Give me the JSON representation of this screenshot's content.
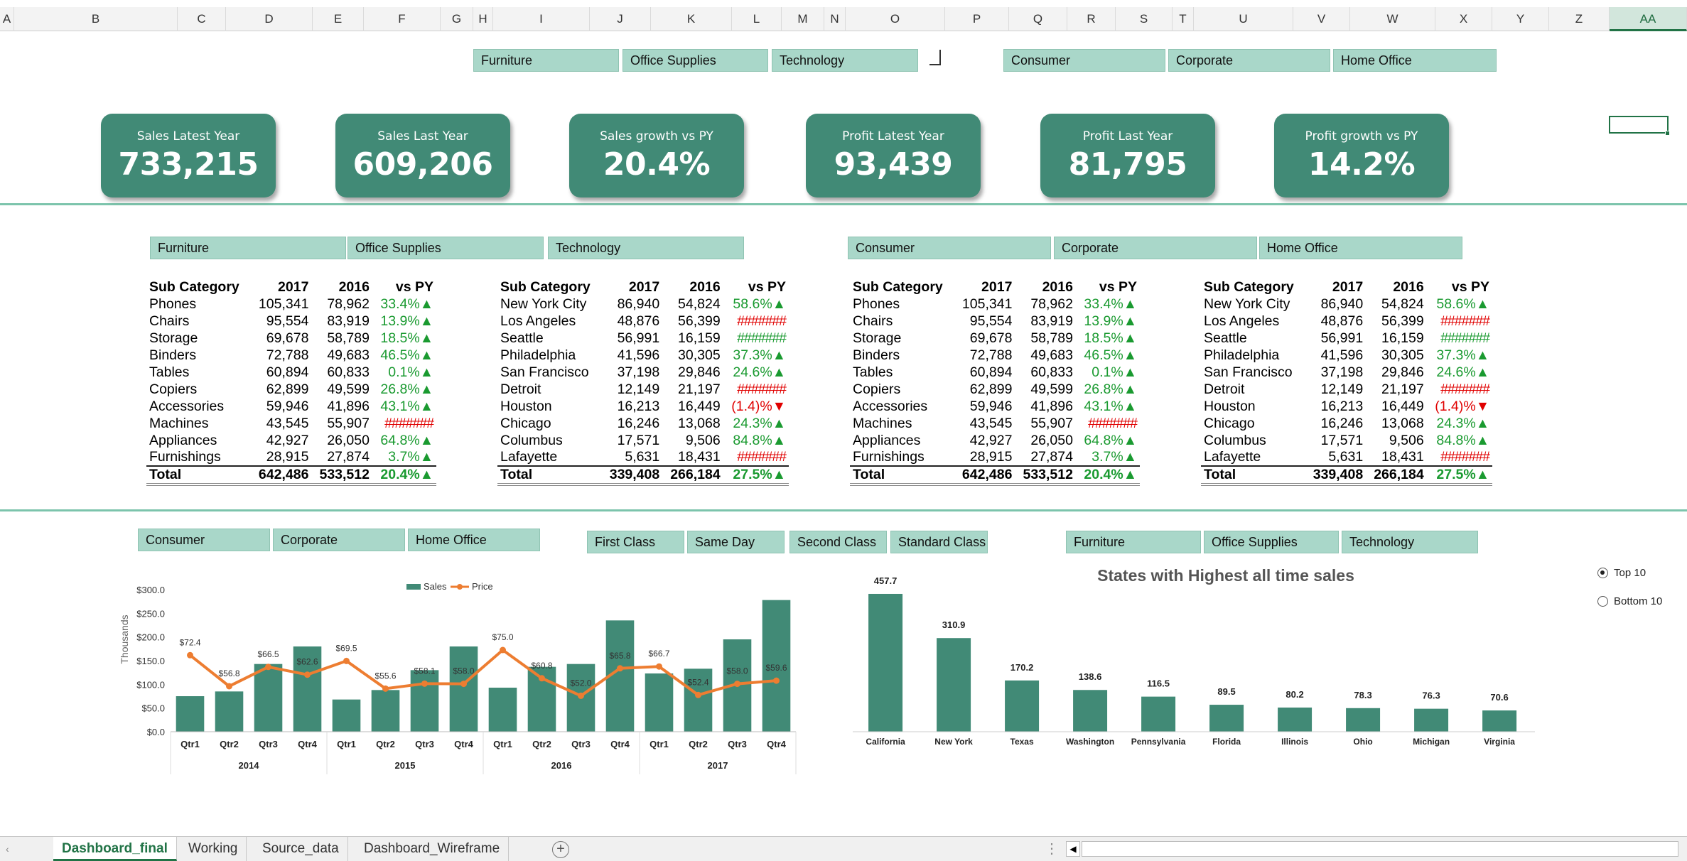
{
  "columns": [
    "A",
    "B",
    "C",
    "D",
    "E",
    "F",
    "G",
    "H",
    "I",
    "J",
    "K",
    "L",
    "M",
    "N",
    "O",
    "P",
    "Q",
    "R",
    "S",
    "T",
    "U",
    "V",
    "W",
    "X",
    "Y",
    "Z",
    "AA"
  ],
  "selected_column": "AA",
  "top_slicers": {
    "category": [
      "Furniture",
      "Office Supplies",
      "Technology"
    ],
    "segment": [
      "Consumer",
      "Corporate",
      "Home Office"
    ]
  },
  "kpis": [
    {
      "label": "Sales Latest Year",
      "value": "733,215"
    },
    {
      "label": "Sales Last Year",
      "value": "609,206"
    },
    {
      "label": "Sales growth vs PY",
      "value": "20.4%"
    },
    {
      "label": "Profit Latest Year",
      "value": "93,439"
    },
    {
      "label": "Profit Last Year",
      "value": "81,795"
    },
    {
      "label": "Profit growth vs PY",
      "value": "14.2%"
    }
  ],
  "mid_slicers": {
    "category": [
      "Furniture",
      "Office Supplies",
      "Technology"
    ],
    "segment": [
      "Consumer",
      "Corporate",
      "Home Office"
    ]
  },
  "table_subcat": {
    "headers": [
      "Sub Category",
      "2017",
      "2016",
      "vs PY"
    ],
    "rows": [
      [
        "Phones",
        "105,341",
        "78,962",
        "33.4%▲"
      ],
      [
        "Chairs",
        "95,554",
        "83,919",
        "13.9%▲"
      ],
      [
        "Storage",
        "69,678",
        "58,789",
        "18.5%▲"
      ],
      [
        "Binders",
        "72,788",
        "49,683",
        "46.5%▲"
      ],
      [
        "Tables",
        "60,894",
        "60,833",
        "0.1%▲"
      ],
      [
        "Copiers",
        "62,899",
        "49,599",
        "26.8%▲"
      ],
      [
        "Accessories",
        "59,946",
        "41,896",
        "43.1%▲"
      ],
      [
        "Machines",
        "43,545",
        "55,907",
        "#######"
      ],
      [
        "Appliances",
        "42,927",
        "26,050",
        "64.8%▲"
      ],
      [
        "Furnishings",
        "28,915",
        "27,874",
        "3.7%▲"
      ]
    ],
    "total": [
      "Total",
      "642,486",
      "533,512",
      "20.4%▲"
    ]
  },
  "table_city": {
    "headers": [
      "Sub Category",
      "2017",
      "2016",
      "vs PY"
    ],
    "rows": [
      [
        "New York City",
        "86,940",
        "54,824",
        "58.6%▲"
      ],
      [
        "Los Angeles",
        "48,876",
        "56,399",
        "#######"
      ],
      [
        "Seattle",
        "56,991",
        "16,159",
        "#######"
      ],
      [
        "Philadelphia",
        "41,596",
        "30,305",
        "37.3%▲"
      ],
      [
        "San Francisco",
        "37,198",
        "29,846",
        "24.6%▲"
      ],
      [
        "Detroit",
        "12,149",
        "21,197",
        "#######"
      ],
      [
        "Houston",
        "16,213",
        "16,449",
        "(1.4)%▼"
      ],
      [
        "Chicago",
        "16,246",
        "13,068",
        "24.3%▲"
      ],
      [
        "Columbus",
        "17,571",
        "9,506",
        "84.8%▲"
      ],
      [
        "Lafayette",
        "5,631",
        "18,431",
        "#######"
      ]
    ],
    "total": [
      "Total",
      "339,408",
      "266,184",
      "27.5%▲"
    ]
  },
  "bottom_slicers": {
    "segment": [
      "Consumer",
      "Corporate",
      "Home Office"
    ],
    "ship_mode": [
      "First Class",
      "Same Day",
      "Second Class",
      "Standard Class"
    ],
    "category": [
      "Furniture",
      "Office Supplies",
      "Technology"
    ]
  },
  "radio": {
    "top": "Top 10",
    "bottom": "Bottom 10",
    "selected": "top"
  },
  "colors": {
    "bar": "#418a76",
    "line": "#ed7d31",
    "accent": "#217346",
    "slicer": "#a9d7c9"
  },
  "chart_data": [
    {
      "type": "bar",
      "title": "",
      "ylabel": "Thousands",
      "legend": [
        "Sales",
        "Price"
      ],
      "legend_position": "top",
      "ylim": [
        0,
        300
      ],
      "yticks": [
        "$0.0",
        "$50.0",
        "$100.0",
        "$150.0",
        "$200.0",
        "$250.0",
        "$300.0"
      ],
      "years": [
        "2014",
        "2015",
        "2016",
        "2017"
      ],
      "categories": [
        "Qtr1",
        "Qtr2",
        "Qtr3",
        "Qtr4",
        "Qtr1",
        "Qtr2",
        "Qtr3",
        "Qtr4",
        "Qtr1",
        "Qtr2",
        "Qtr3",
        "Qtr4",
        "Qtr1",
        "Qtr2",
        "Qtr3",
        "Qtr4"
      ],
      "series": [
        {
          "name": "Sales",
          "type": "bar",
          "values": [
            75,
            85,
            143,
            180,
            68,
            88,
            130,
            180,
            93,
            137,
            143,
            235,
            123,
            133,
            195,
            278
          ]
        },
        {
          "name": "Price",
          "type": "line",
          "values": [
            72.4,
            56.8,
            66.5,
            62.6,
            69.5,
            55.6,
            58.1,
            58.0,
            75.0,
            60.8,
            52.0,
            65.8,
            66.7,
            52.4,
            58.0,
            59.6
          ],
          "labels": [
            "$72.4",
            "$56.8",
            "$66.5",
            "$62.6",
            "$69.5",
            "$55.6",
            "$58.1",
            "$58.0",
            "$75.0",
            "$60.8",
            "$52.0",
            "$65.8",
            "$66.7",
            "$52.4",
            "$58.0",
            "$59.6"
          ]
        }
      ]
    },
    {
      "type": "bar",
      "title": "States with Highest all time sales",
      "categories": [
        "California",
        "New York",
        "Texas",
        "Washington",
        "Pennsylvania",
        "Florida",
        "Illinois",
        "Ohio",
        "Michigan",
        "Virginia"
      ],
      "values": [
        457.7,
        310.9,
        170.2,
        138.6,
        116.5,
        89.5,
        80.2,
        78.3,
        76.3,
        70.6
      ],
      "labels": [
        "457.7",
        "310.9",
        "170.2",
        "138.6",
        "116.5",
        "89.5",
        "80.2",
        "78.3",
        "76.3",
        "70.6"
      ]
    }
  ],
  "sheet_tabs": [
    "Dashboard_final",
    "Working",
    "Source_data",
    "Dashboard_Wireframe"
  ],
  "active_tab": "Dashboard_final",
  "add_sheet_label": "+"
}
